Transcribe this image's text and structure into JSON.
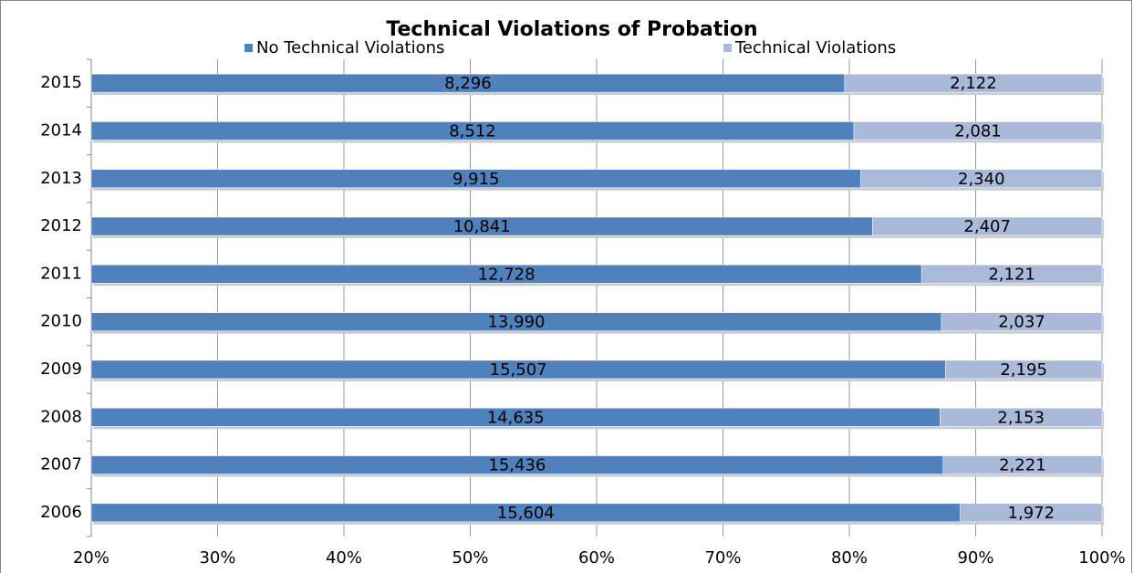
{
  "chart_data": {
    "type": "bar",
    "orientation": "horizontal",
    "stacked": "percent",
    "title": "Technical Violations of Probation",
    "categories": [
      "2015",
      "2014",
      "2013",
      "2012",
      "2011",
      "2010",
      "2009",
      "2008",
      "2007",
      "2006"
    ],
    "series": [
      {
        "name": "No Technical Violations",
        "color": "#4f81bd",
        "values": [
          8296,
          8512,
          9915,
          10841,
          12728,
          13990,
          15507,
          14635,
          15436,
          15604
        ],
        "value_labels": [
          "8,296",
          "8,512",
          "9,915",
          "10,841",
          "12,728",
          "13,990",
          "15,507",
          "14,635",
          "15,436",
          "15,604"
        ]
      },
      {
        "name": "Technical Violations",
        "color": "#a9b9d9",
        "values": [
          2122,
          2081,
          2340,
          2407,
          2121,
          2037,
          2195,
          2153,
          2221,
          1972
        ],
        "value_labels": [
          "2,122",
          "2,081",
          "2,340",
          "2,407",
          "2,121",
          "2,037",
          "2,195",
          "2,153",
          "2,221",
          "1,972"
        ]
      }
    ],
    "xlim": [
      20,
      100
    ],
    "xticks": [
      {
        "value": 20,
        "label": "20%"
      },
      {
        "value": 30,
        "label": "30%"
      },
      {
        "value": 40,
        "label": "40%"
      },
      {
        "value": 50,
        "label": "50%"
      },
      {
        "value": 60,
        "label": "60%"
      },
      {
        "value": 70,
        "label": "70%"
      },
      {
        "value": 80,
        "label": "80%"
      },
      {
        "value": 90,
        "label": "90%"
      },
      {
        "value": 100,
        "label": "100%"
      }
    ],
    "grid": true,
    "legend": "top"
  }
}
